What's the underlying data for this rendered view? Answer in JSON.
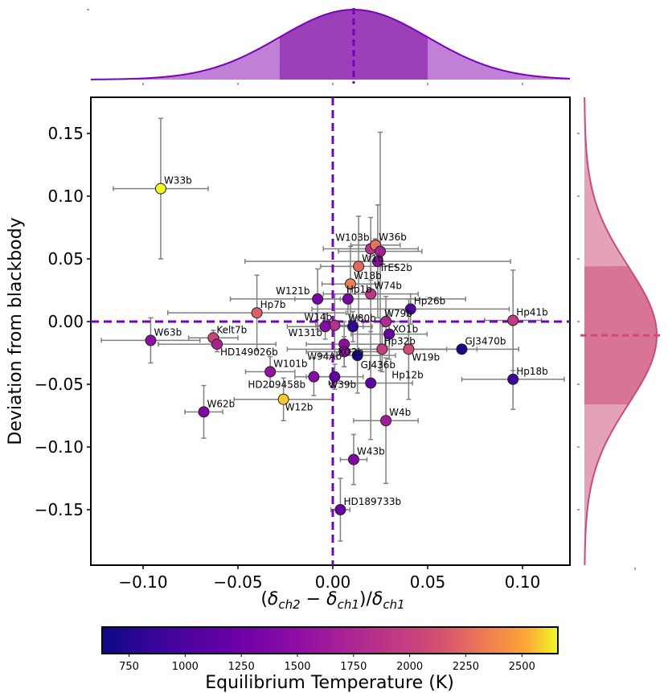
{
  "chart_data": {
    "type": "scatter",
    "title": "",
    "xlabel": "(δch2 − δch1)/δch1",
    "ylabel": "Deviation from blackbody",
    "xlim": [
      -0.1275,
      0.125
    ],
    "ylim": [
      -0.195,
      0.18
    ],
    "xticks": [
      -0.1,
      -0.05,
      0.0,
      0.05,
      0.1
    ],
    "xtick_labels": [
      "−0.10",
      "−0.05",
      "0.00",
      "0.05",
      "0.10"
    ],
    "yticks": [
      0.15,
      0.1,
      0.05,
      0.0,
      -0.05,
      -0.1,
      -0.15
    ],
    "ytick_labels": [
      "0.15",
      "0.10",
      "0.05",
      "0.00",
      "−0.05",
      "−0.10",
      "−0.15"
    ],
    "grid": false,
    "reference_lines": {
      "x": 0.0,
      "y": 0.0,
      "color": "#7a00c0",
      "style": "dashed"
    },
    "errorbar_color": "#808080",
    "points": [
      {
        "name": "W33b",
        "x": -0.0907,
        "y": 0.106,
        "xerr": 0.025,
        "yerr": 0.056,
        "teq": 2710
      },
      {
        "name": "W103b",
        "x": 0.02,
        "y": 0.058,
        "xerr": 0.025,
        "yerr": 0.025,
        "teq": 1880
      },
      {
        "name": "W36b",
        "x": 0.0225,
        "y": 0.061,
        "xerr": 0.013,
        "yerr": 0.005,
        "teq": 2300
      },
      {
        "name": "",
        "x": 0.025,
        "y": 0.056,
        "xerr": 0.022,
        "yerr": 0.095,
        "teq": 1700
      },
      {
        "name": "W1b",
        "x": 0.0136,
        "y": 0.044,
        "xerr": 0.02,
        "yerr": 0.04,
        "teq": 2250
      },
      {
        "name": "TrES2b",
        "x": 0.0237,
        "y": 0.048,
        "xerr": 0.07,
        "yerr": 0.045,
        "teq": 1500
      },
      {
        "name": "W18b",
        "x": 0.0093,
        "y": 0.03,
        "xerr": 0.015,
        "yerr": 0.03,
        "teq": 2350
      },
      {
        "name": "W74b",
        "x": 0.02,
        "y": 0.022,
        "xerr": 0.025,
        "yerr": 0.03,
        "teq": 1900
      },
      {
        "name": "W121b",
        "x": -0.008,
        "y": 0.018,
        "xerr": 0.012,
        "yerr": 0.024,
        "teq": 1350
      },
      {
        "name": "Hp1b",
        "x": 0.008,
        "y": 0.018,
        "xerr": 0.062,
        "yerr": 0.012,
        "teq": 1350
      },
      {
        "name": "Hp26b",
        "x": 0.041,
        "y": 0.01,
        "xerr": 0.052,
        "yerr": 0.012,
        "teq": 1000
      },
      {
        "name": "Hp7b",
        "x": -0.04,
        "y": 0.007,
        "xerr": 0.047,
        "yerr": 0.03,
        "teq": 2200
      },
      {
        "name": "Hp41b",
        "x": 0.095,
        "y": 0.001,
        "xerr": 0.015,
        "yerr": 0.04,
        "teq": 1950
      },
      {
        "name": "W14b",
        "x": 0.001,
        "y": -0.003,
        "xerr": 0.01,
        "yerr": 0.025,
        "teq": 1850
      },
      {
        "name": "W80b",
        "x": 0.0106,
        "y": -0.004,
        "xerr": 0.01,
        "yerr": 0.012,
        "teq": 820
      },
      {
        "name": "W79b",
        "x": 0.028,
        "y": 0.0,
        "xerr": 0.012,
        "yerr": 0.02,
        "teq": 1800
      },
      {
        "name": "XO1b",
        "x": 0.0297,
        "y": -0.01,
        "xerr": 0.02,
        "yerr": 0.02,
        "teq": 1200
      },
      {
        "name": "W131b",
        "x": -0.004,
        "y": -0.004,
        "xerr": 0.02,
        "yerr": 0.01,
        "teq": 1450
      },
      {
        "name": "W63b",
        "x": -0.096,
        "y": -0.015,
        "xerr": 0.026,
        "yerr": 0.018,
        "teq": 1500
      },
      {
        "name": "Kelt7b",
        "x": -0.063,
        "y": -0.013,
        "xerr": 0.013,
        "yerr": 0.006,
        "teq": 2050
      },
      {
        "name": "HD149026b",
        "x": -0.061,
        "y": -0.018,
        "xerr": 0.031,
        "yerr": 0.006,
        "teq": 1700
      },
      {
        "name": "XO2b",
        "x": 0.006,
        "y": -0.018,
        "xerr": 0.02,
        "yerr": 0.018,
        "teq": 1500
      },
      {
        "name": "Hp32b",
        "x": 0.026,
        "y": -0.022,
        "xerr": 0.05,
        "yerr": 0.018,
        "teq": 2000
      },
      {
        "name": "W19b",
        "x": 0.04,
        "y": -0.022,
        "xerr": 0.02,
        "yerr": 0.04,
        "teq": 2100
      },
      {
        "name": "GJ3470b",
        "x": 0.068,
        "y": -0.022,
        "xerr": 0.03,
        "yerr": 0.0,
        "teq": 690
      },
      {
        "name": "W94Ab",
        "x": 0.006,
        "y": -0.024,
        "xerr": 0.02,
        "yerr": 0.012,
        "teq": 1500
      },
      {
        "name": "GJ436b",
        "x": 0.013,
        "y": -0.027,
        "xerr": 0.02,
        "yerr": 0.03,
        "teq": 690
      },
      {
        "name": "W101b",
        "x": -0.033,
        "y": -0.04,
        "xerr": 0.013,
        "yerr": 0.012,
        "teq": 1550
      },
      {
        "name": "HD209458b",
        "x": -0.01,
        "y": -0.044,
        "xerr": 0.01,
        "yerr": 0.015,
        "teq": 1450
      },
      {
        "name": "W39b",
        "x": 0.001,
        "y": -0.044,
        "xerr": 0.015,
        "yerr": 0.01,
        "teq": 1150
      },
      {
        "name": "Hp12b",
        "x": 0.02,
        "y": -0.049,
        "xerr": 0.022,
        "yerr": 0.045,
        "teq": 1150
      },
      {
        "name": "Hp18b",
        "x": 0.095,
        "y": -0.046,
        "xerr": 0.027,
        "yerr": 0.024,
        "teq": 900
      },
      {
        "name": "W12b",
        "x": -0.026,
        "y": -0.062,
        "xerr": 0.026,
        "yerr": 0.017,
        "teq": 2580
      },
      {
        "name": "W62b",
        "x": -0.068,
        "y": -0.072,
        "xerr": 0.01,
        "yerr": 0.021,
        "teq": 1400
      },
      {
        "name": "W4b",
        "x": 0.028,
        "y": -0.079,
        "xerr": 0.017,
        "yerr": 0.05,
        "teq": 1650
      },
      {
        "name": "W43b",
        "x": 0.011,
        "y": -0.11,
        "xerr": 0.007,
        "yerr": 0.02,
        "teq": 1400
      },
      {
        "name": "HD189733b",
        "x": 0.004,
        "y": -0.15,
        "xerr": 0.005,
        "yerr": 0.025,
        "teq": 1200
      }
    ],
    "top_marginal": {
      "type": "gaussian",
      "mean": 0.011,
      "sigma": 0.039,
      "color": "#7a00c0",
      "fill_outer": "#bf80d6",
      "fill_inner": "#9b40b8"
    },
    "right_marginal": {
      "type": "gaussian",
      "mean": -0.011,
      "sigma": 0.055,
      "color": "#d0487a",
      "fill_outer": "#e4a2b8",
      "fill_inner": "#d87496"
    },
    "colorbar": {
      "label": "Equilibrium Temperature (K)",
      "colormap": "plasma",
      "range": [
        630,
        2660
      ],
      "ticks": [
        750,
        1000,
        1250,
        1500,
        1750,
        2000,
        2250,
        2500
      ],
      "tick_labels": [
        "750",
        "1000",
        "1250",
        "1500",
        "1750",
        "2000",
        "2250",
        "2500"
      ]
    }
  }
}
